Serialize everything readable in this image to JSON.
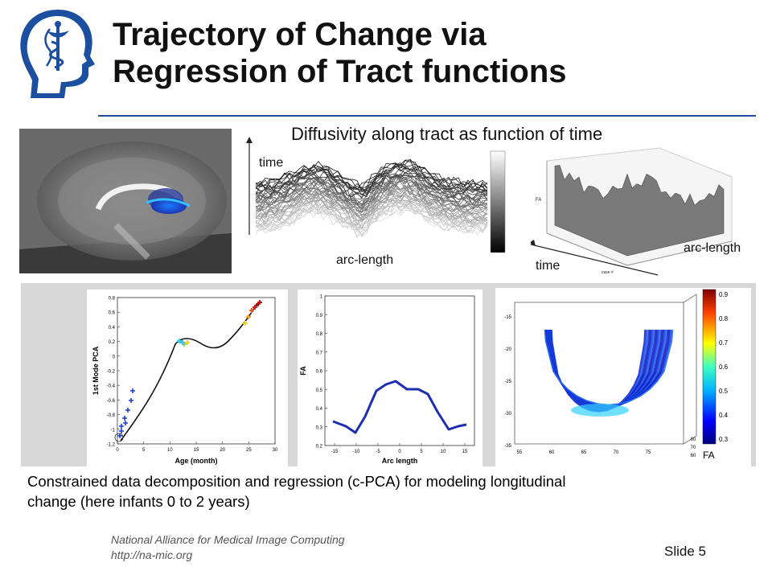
{
  "header": {
    "title_line1": "Trajectory of Change via",
    "title_line2": "Regression of Tract functions"
  },
  "top_row": {
    "subtitle": "Diffusivity along tract as function of time",
    "waveform_time_label": "time",
    "waveform_arc_label": "arc-length",
    "surface_time_label": "time",
    "surface_arc_label": "arc-length",
    "surface_z_axis_label": "FA",
    "surface_x_axis_label": "case #"
  },
  "plot_pca": {
    "xlabel": "Age (month)",
    "ylabel": "1st Mode PCA",
    "xticks": [
      "0",
      "5",
      "10",
      "15",
      "20",
      "25",
      "30"
    ],
    "yticks": [
      "0.8",
      "0.6",
      "0.4",
      "0.2",
      "0",
      "-0.2",
      "-0.4",
      "-0.6",
      "-0.8",
      "-1",
      "-1.2"
    ]
  },
  "plot_fa": {
    "xlabel": "Arc length",
    "ylabel": "FA",
    "xticks": [
      "-15",
      "-10",
      "-5",
      "0",
      "5",
      "10",
      "15"
    ],
    "yticks": [
      "1",
      "0.9",
      "0.8",
      "0.7",
      "0.6",
      "0.5",
      "0.4",
      "0.3",
      "0.2"
    ]
  },
  "plot_3d": {
    "yticks": [
      "-15",
      "-20",
      "-25",
      "-30",
      "-35"
    ],
    "xticks": [
      "55",
      "60",
      "65",
      "70",
      "75"
    ],
    "zticks": [
      "80",
      "70",
      "60"
    ],
    "colorbar_label": "FA",
    "colorbar_ticks": [
      "0.9",
      "0.8",
      "0.7",
      "0.6",
      "0.5",
      "0.4",
      "0.3"
    ]
  },
  "caption": {
    "line1": "Constrained data decomposition and regression (c-PCA) for modeling longitudinal",
    "line2": "change (here infants 0 to 2 years)"
  },
  "footer": {
    "org": "National Alliance for Medical Image Computing",
    "url": "http://na-mic.org",
    "slide": "Slide 5"
  },
  "colors": {
    "rule": "#1f4f9c",
    "logo": "#1d4fa0",
    "fa_curve": "#1c2fb0"
  }
}
